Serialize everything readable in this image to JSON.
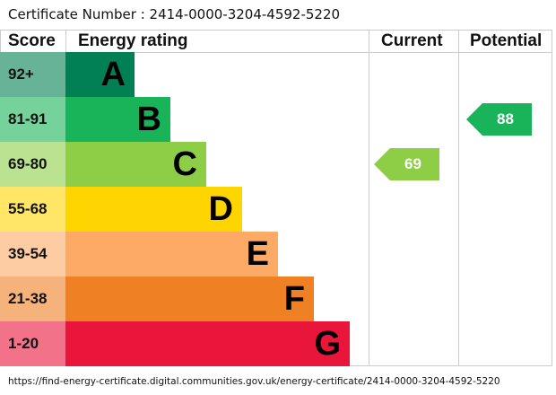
{
  "certificate_label": "Certificate Number : 2414-0000-3204-4592-5220",
  "url": "https://find-energy-certificate.digital.communities.gov.uk/energy-certificate/2414-0000-3204-4592-5220",
  "chart_data": {
    "type": "bar",
    "headers": {
      "score": "Score",
      "rating": "Energy rating",
      "current": "Current",
      "potential": "Potential"
    },
    "bands": [
      {
        "score": "92+",
        "letter": "A",
        "color": "#008054",
        "light": "#66b398"
      },
      {
        "score": "81-91",
        "letter": "B",
        "color": "#19b459",
        "light": "#75d29b"
      },
      {
        "score": "69-80",
        "letter": "C",
        "color": "#8dce46",
        "light": "#bbe290"
      },
      {
        "score": "55-68",
        "letter": "D",
        "color": "#ffd500",
        "light": "#ffe666"
      },
      {
        "score": "39-54",
        "letter": "E",
        "color": "#fcaa65",
        "light": "#fdcca2"
      },
      {
        "score": "21-38",
        "letter": "F",
        "color": "#ef8023",
        "light": "#f5b37b"
      },
      {
        "score": "1-20",
        "letter": "G",
        "color": "#e9153b",
        "light": "#f27389"
      }
    ],
    "current": {
      "value": 69,
      "band": "C",
      "color": "#8dce46"
    },
    "potential": {
      "value": 88,
      "band": "B",
      "color": "#19b459"
    }
  }
}
